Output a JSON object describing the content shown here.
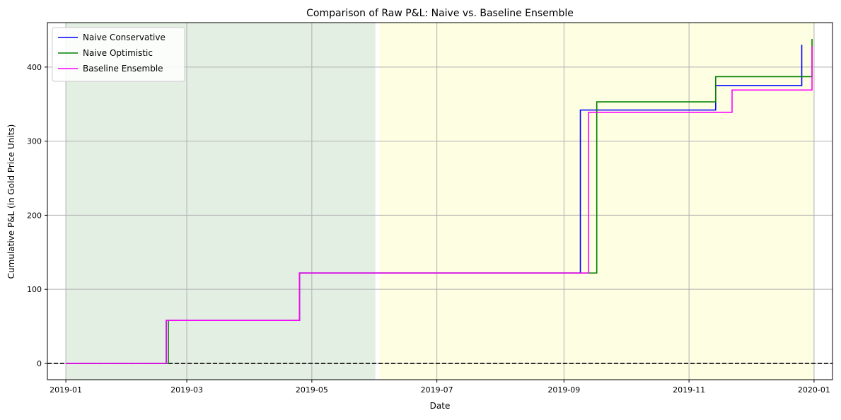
{
  "chart_data": {
    "type": "line",
    "title": "Comparison of Raw P&L: Naive vs. Baseline Ensemble",
    "xlabel": "Date",
    "ylabel": "Cumulative P&L (in Gold Price Units)",
    "xlim": [
      "2018-12-23",
      "2020-01-10"
    ],
    "ylim": [
      -22,
      460
    ],
    "x_ticks": [
      "2019-01",
      "2019-03",
      "2019-05",
      "2019-07",
      "2019-09",
      "2019-11",
      "2020-01"
    ],
    "y_ticks": [
      0,
      100,
      200,
      300,
      400
    ],
    "grid": true,
    "legend_position": "top-left",
    "shaded_regions": [
      {
        "start": "2019-01-01",
        "end": "2019-05-31",
        "color": "#e4efe4"
      },
      {
        "start": "2019-06-03",
        "end": "2019-12-31",
        "color": "#fefee3"
      }
    ],
    "reference_line": {
      "y": 0,
      "style": "dashed",
      "color": "#000000"
    },
    "series": [
      {
        "name": "Naive Conservative",
        "color": "#0000ff",
        "step": "post",
        "points": [
          [
            "2019-01-01",
            0
          ],
          [
            "2019-02-19",
            58
          ],
          [
            "2019-04-25",
            122
          ],
          [
            "2019-09-09",
            342
          ],
          [
            "2019-11-14",
            375
          ],
          [
            "2019-12-26",
            430
          ]
        ]
      },
      {
        "name": "Naive Optimistic",
        "color": "#008000",
        "step": "post",
        "points": [
          [
            "2019-01-01",
            0
          ],
          [
            "2019-02-20",
            58
          ],
          [
            "2019-04-25",
            122
          ],
          [
            "2019-09-17",
            353
          ],
          [
            "2019-11-14",
            387
          ],
          [
            "2019-12-31",
            438
          ]
        ]
      },
      {
        "name": "Baseline Ensemble",
        "color": "#ff00ff",
        "step": "post",
        "points": [
          [
            "2019-01-01",
            0
          ],
          [
            "2019-02-19",
            58
          ],
          [
            "2019-04-25",
            122
          ],
          [
            "2019-09-13",
            339
          ],
          [
            "2019-11-22",
            369
          ],
          [
            "2019-12-31",
            428
          ]
        ]
      }
    ]
  }
}
